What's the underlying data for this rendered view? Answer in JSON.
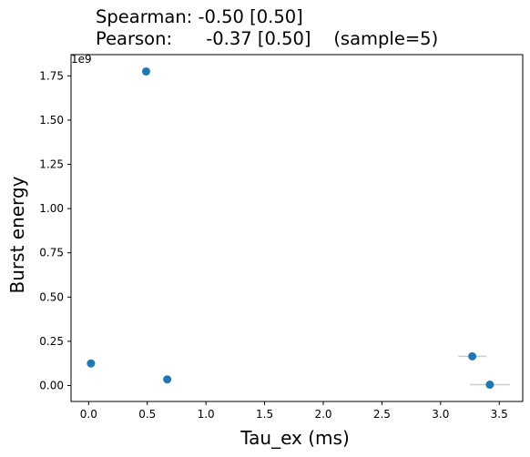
{
  "title_lines": [
    "Spearman: -0.50 [0.50]",
    "Pearson:      -0.37 [0.50]    (sample=5)"
  ],
  "chart_data": {
    "type": "scatter",
    "xlabel": "Tau_ex (ms)",
    "ylabel": "Burst energy",
    "y_offset_label": "1e9",
    "xlim": [
      -0.15,
      3.7
    ],
    "ylim": [
      -0.09,
      1.87
    ],
    "x_ticks": [
      "0.0",
      "0.5",
      "1.0",
      "1.5",
      "2.0",
      "2.5",
      "3.0",
      "3.5"
    ],
    "x_tick_values": [
      0.0,
      0.5,
      1.0,
      1.5,
      2.0,
      2.5,
      3.0,
      3.5
    ],
    "y_ticks": [
      "0.00",
      "0.25",
      "0.50",
      "0.75",
      "1.00",
      "1.25",
      "1.50",
      "1.75"
    ],
    "y_tick_values": [
      0.0,
      0.25,
      0.5,
      0.75,
      1.0,
      1.25,
      1.5,
      1.75
    ],
    "point_color": "#1f77b4",
    "errorbar_color": "#cccccc",
    "points": [
      {
        "x": 0.02,
        "y": 0.125,
        "xerr": 0
      },
      {
        "x": 0.49,
        "y": 1.775,
        "xerr": 0
      },
      {
        "x": 0.67,
        "y": 0.035,
        "xerr": 0
      },
      {
        "x": 3.27,
        "y": 0.165,
        "xerr": 0.12
      },
      {
        "x": 3.42,
        "y": 0.005,
        "xerr": 0.17
      }
    ]
  }
}
